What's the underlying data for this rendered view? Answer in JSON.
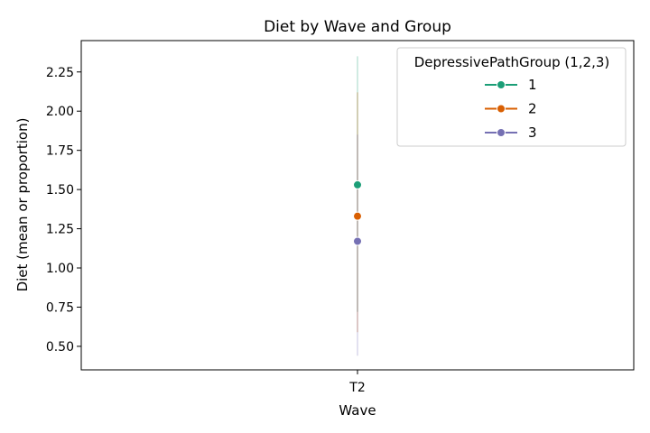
{
  "chart_data": {
    "type": "line",
    "title": "Diet by Wave and Group",
    "xlabel": "Wave",
    "ylabel": "Diet (mean or proportion)",
    "categories": [
      "T2"
    ],
    "ylim": [
      0.35,
      2.45
    ],
    "yticks": [
      0.5,
      0.75,
      1.0,
      1.25,
      1.5,
      1.75,
      2.0,
      2.25
    ],
    "ytick_labels": [
      "0.50",
      "0.75",
      "1.00",
      "1.25",
      "1.50",
      "1.75",
      "2.00",
      "2.25"
    ],
    "grid": false,
    "legend": {
      "title": "DepressivePathGroup (1,2,3)",
      "placement": "top-right"
    },
    "series": [
      {
        "name": "1",
        "color": "#1b9e77",
        "values": [
          1.53
        ],
        "ci": [
          [
            0.72,
            2.35
          ]
        ]
      },
      {
        "name": "2",
        "color": "#d95f02",
        "values": [
          1.33
        ],
        "ci": [
          [
            0.59,
            2.12
          ]
        ]
      },
      {
        "name": "3",
        "color": "#7570b3",
        "values": [
          1.17
        ],
        "ci": [
          [
            0.44,
            1.85
          ]
        ]
      }
    ]
  }
}
